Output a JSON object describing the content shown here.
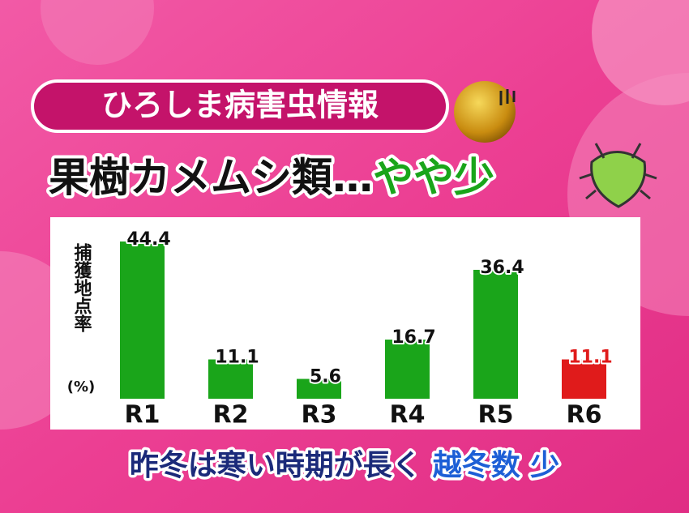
{
  "header": {
    "badge": "ひろしま病害虫情報",
    "title": "果樹カメムシ類…",
    "title_highlight": "やや少"
  },
  "chart_data": {
    "type": "bar",
    "y_label": "捕獲地点率",
    "y_unit": "(%)",
    "categories": [
      "R1",
      "R2",
      "R3",
      "R4",
      "R5",
      "R6"
    ],
    "values": [
      44.4,
      11.1,
      5.6,
      16.7,
      36.4,
      11.1
    ],
    "colors": [
      "#1aa51a",
      "#1aa51a",
      "#1aa51a",
      "#1aa51a",
      "#1aa51a",
      "#e01b1b"
    ],
    "label_colors": [
      "#111111",
      "#111111",
      "#111111",
      "#111111",
      "#111111",
      "#e01b1b"
    ]
  },
  "caption": {
    "text": "昨冬は寒い時期が長く",
    "highlight": "越冬数 少"
  }
}
